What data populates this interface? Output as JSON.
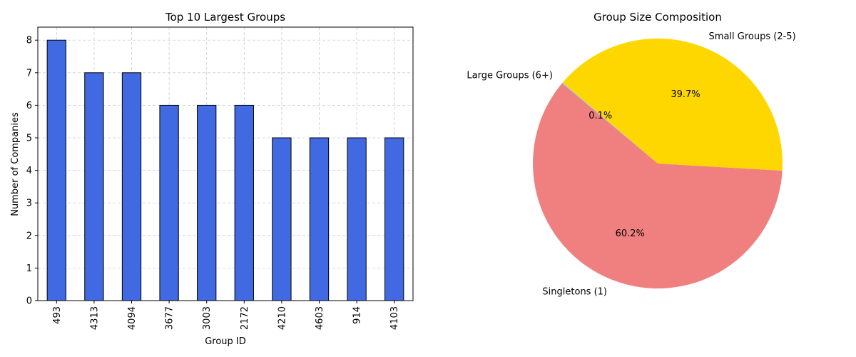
{
  "chart_data": [
    {
      "type": "bar",
      "title": "Top 10 Largest Groups",
      "xlabel": "Group ID",
      "ylabel": "Number of Companies",
      "categories": [
        "493",
        "4313",
        "4094",
        "3677",
        "3003",
        "2172",
        "4210",
        "4603",
        "914",
        "4103"
      ],
      "values": [
        8,
        7,
        7,
        6,
        6,
        6,
        5,
        5,
        5,
        5
      ],
      "ylim": [
        0,
        8.4
      ],
      "yticks": [
        0,
        1,
        2,
        3,
        4,
        5,
        6,
        7,
        8
      ],
      "grid": true,
      "colors": {
        "bar": "#4169e1",
        "edge": "#000000",
        "grid": "#cccccc"
      }
    },
    {
      "type": "pie",
      "title": "Group Size Composition",
      "slices": [
        {
          "label": "Singletons (1)",
          "value": 60.2,
          "pct_label": "60.2%",
          "color": "#f08080"
        },
        {
          "label": "Small Groups (2-5)",
          "value": 39.7,
          "pct_label": "39.7%",
          "color": "#ffd700"
        },
        {
          "label": "Large Groups (6+)",
          "value": 0.1,
          "pct_label": "0.1%",
          "color": "#87ceeb"
        }
      ],
      "start_angle": 140
    }
  ]
}
